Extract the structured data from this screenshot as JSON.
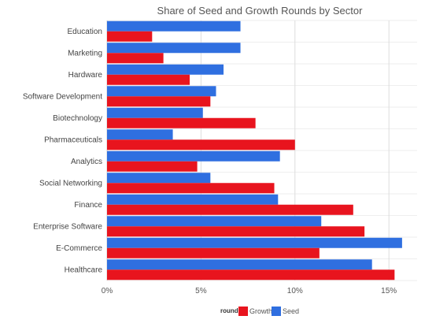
{
  "chart_data": {
    "type": "bar",
    "orientation": "horizontal",
    "title": "Share of Seed and Growth Rounds by Sector",
    "categories": [
      "Education",
      "Marketing",
      "Hardware",
      "Software Development",
      "Biotechnology",
      "Pharmaceuticals",
      "Analytics",
      "Social Networking",
      "Finance",
      "Enterprise Software",
      "E-Commerce",
      "Healthcare"
    ],
    "series": [
      {
        "name": "Seed",
        "color": "#2f6fe0",
        "values": [
          7.1,
          7.1,
          6.2,
          5.8,
          5.1,
          3.5,
          9.2,
          5.5,
          9.1,
          11.4,
          15.7,
          14.1
        ]
      },
      {
        "name": "Growth",
        "color": "#e8141e",
        "values": [
          2.4,
          3.0,
          4.4,
          5.5,
          7.9,
          10.0,
          4.8,
          8.9,
          13.1,
          13.7,
          11.3,
          15.3
        ]
      }
    ],
    "xlim": [
      0,
      16.5
    ],
    "xticks": [
      0,
      5,
      10,
      15
    ],
    "xtick_labels": [
      "0%",
      "5%",
      "10%",
      "15%"
    ],
    "grid": true,
    "legend": {
      "title": "round",
      "position": "bottom",
      "order": [
        "Growth",
        "Seed"
      ]
    }
  }
}
